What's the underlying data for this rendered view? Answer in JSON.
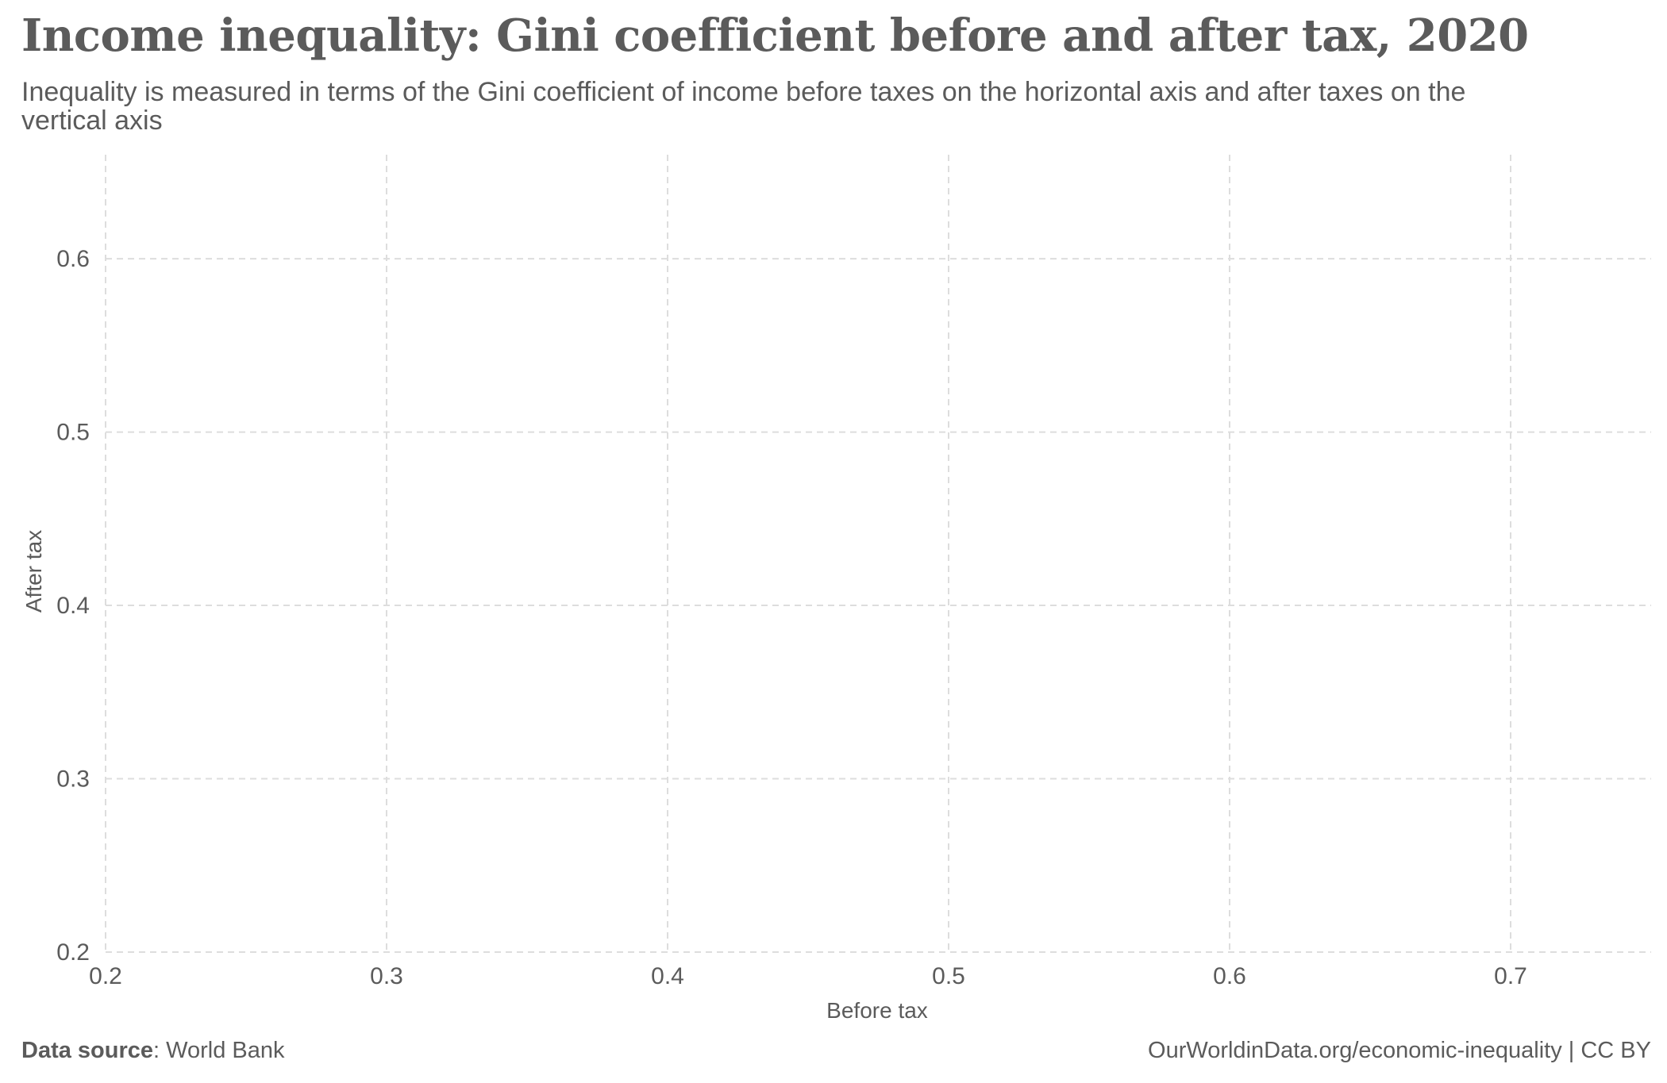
{
  "header": {
    "title": "Income inequality: Gini coefficient before and after tax, 2020",
    "subtitle": "Inequality is measured in terms of the Gini coefficient of income before taxes on the horizontal axis and after taxes on the vertical axis"
  },
  "footer": {
    "source_label": "Data source",
    "source_separator": ": ",
    "source_value": "World Bank",
    "attribution": "OurWorldinData.org/economic-inequality | CC BY"
  },
  "colors": {
    "text": "#5b5b5b",
    "grid": "#dddddd",
    "background": "#ffffff"
  },
  "chart_data": {
    "type": "scatter",
    "title": "Income inequality: Gini coefficient before and after tax, 2020",
    "xlabel": "Before tax",
    "ylabel": "After tax",
    "xlim": [
      0.2,
      0.75
    ],
    "ylim": [
      0.2,
      0.66
    ],
    "x_ticks": [
      0.2,
      0.3,
      0.4,
      0.5,
      0.6,
      0.7
    ],
    "x_tick_labels": [
      "0.2",
      "0.3",
      "0.4",
      "0.5",
      "0.6",
      "0.7"
    ],
    "y_ticks": [
      0.2,
      0.3,
      0.4,
      0.5,
      0.6
    ],
    "y_tick_labels": [
      "0.2",
      "0.3",
      "0.4",
      "0.5",
      "0.6"
    ],
    "grid": true,
    "grid_style": "dashed",
    "series": []
  }
}
